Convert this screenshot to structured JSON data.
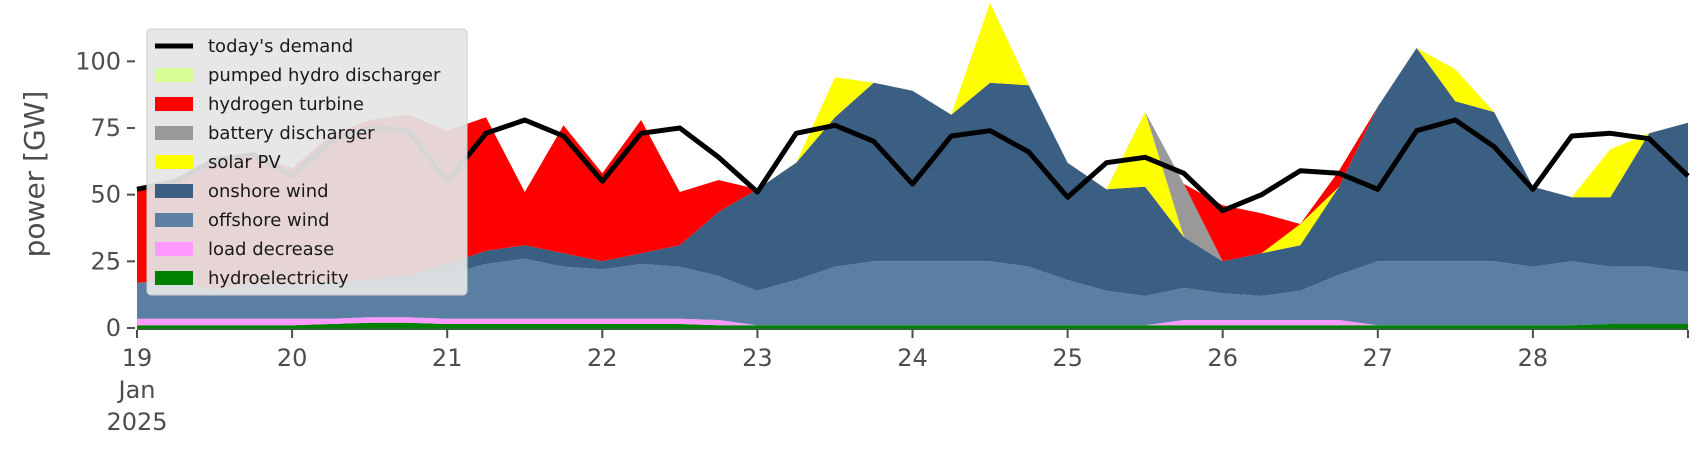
{
  "chart_data": {
    "type": "area",
    "ylabel": "power [GW]",
    "ylim": [
      0,
      120
    ],
    "yticks": [
      0,
      25,
      50,
      75,
      100
    ],
    "xlim": [
      0,
      10
    ],
    "xticks": [
      {
        "x": 0,
        "lines": [
          "19",
          "Jan",
          "2025"
        ]
      },
      {
        "x": 1,
        "lines": [
          "20"
        ]
      },
      {
        "x": 2,
        "lines": [
          "21"
        ]
      },
      {
        "x": 3,
        "lines": [
          "22"
        ]
      },
      {
        "x": 4,
        "lines": [
          "23"
        ]
      },
      {
        "x": 5,
        "lines": [
          "24"
        ]
      },
      {
        "x": 6,
        "lines": [
          "25"
        ]
      },
      {
        "x": 7,
        "lines": [
          "26"
        ]
      },
      {
        "x": 8,
        "lines": [
          "27"
        ]
      },
      {
        "x": 9,
        "lines": [
          "28"
        ]
      }
    ],
    "grid": false,
    "legend_position": "top-left",
    "x": [
      0,
      0.25,
      0.5,
      0.75,
      1,
      1.25,
      1.5,
      1.75,
      2,
      2.25,
      2.5,
      2.75,
      3,
      3.25,
      3.5,
      3.75,
      4,
      4.25,
      4.5,
      4.75,
      5,
      5.25,
      5.5,
      5.75,
      6,
      6.25,
      6.5,
      6.75,
      7,
      7.25,
      7.5,
      7.75,
      8,
      8.25,
      8.5,
      8.75,
      9,
      9.25,
      9.5,
      9.75,
      10
    ],
    "stack_series": [
      {
        "name": "hydroelectricity",
        "color": "#008000",
        "values": [
          1,
          1,
          1,
          1,
          1,
          1.5,
          2,
          2,
          1.5,
          1.5,
          1.5,
          1.5,
          1.5,
          1.5,
          1.5,
          1,
          1,
          1,
          1,
          1,
          1,
          1,
          1,
          1,
          1,
          1,
          1,
          1,
          1,
          1,
          1,
          1,
          1,
          1,
          1,
          1,
          1,
          1,
          1.5,
          1.5,
          1.5
        ]
      },
      {
        "name": "load decrease",
        "color": "#ff99ff",
        "values": [
          2.5,
          2.5,
          2.5,
          2.5,
          2.5,
          2,
          2,
          2,
          2,
          2,
          2,
          2,
          2,
          2,
          2,
          2,
          0,
          0,
          0,
          0,
          0,
          0,
          0,
          0,
          0,
          0,
          0,
          2,
          2,
          2,
          2,
          2,
          0,
          0,
          0,
          0,
          0,
          0,
          0,
          0,
          0
        ]
      },
      {
        "name": "offshore wind",
        "color": "#5b7fa3",
        "values": [
          13.5,
          14.5,
          11,
          13.5,
          12.5,
          13,
          12,
          14,
          16.5,
          20.5,
          22.5,
          19.5,
          18.5,
          20.5,
          19.5,
          16.5,
          13,
          17,
          22,
          24,
          24,
          24,
          24,
          22,
          17,
          13,
          11,
          12,
          10,
          9,
          11,
          17,
          24,
          24,
          24,
          24,
          22,
          24,
          21.5,
          21.5,
          19.5
        ]
      },
      {
        "name": "onshore wind",
        "color": "#3a5f82",
        "values": [
          0,
          0,
          0,
          0,
          0,
          1,
          2,
          2,
          4,
          5,
          5,
          5,
          3,
          4,
          8,
          24,
          38,
          44,
          56,
          67,
          64,
          55,
          67,
          68,
          44,
          38,
          41,
          19,
          12,
          16,
          17,
          33,
          58,
          80,
          60,
          56,
          30,
          24,
          26,
          50,
          56
        ]
      },
      {
        "name": "solar PV",
        "color": "#ffff00",
        "values": [
          0,
          0,
          0,
          0,
          0,
          0,
          0,
          0,
          0,
          0,
          0,
          0,
          0,
          0,
          0,
          0,
          0,
          0,
          15,
          0,
          0,
          0,
          30,
          0,
          0,
          0,
          28,
          0,
          0,
          0,
          8,
          0,
          0,
          0,
          12,
          0,
          0,
          0,
          18,
          0,
          0
        ]
      },
      {
        "name": "battery discharger",
        "color": "#999999",
        "values": [
          0,
          0,
          0,
          0,
          0,
          0,
          0,
          0,
          0,
          0,
          0,
          0,
          0,
          0,
          0,
          0,
          0,
          0,
          0,
          0,
          0,
          0,
          0,
          0,
          0,
          0,
          0,
          20,
          0,
          0,
          0,
          0,
          0,
          0,
          0,
          0,
          0,
          0,
          0,
          0,
          0
        ]
      },
      {
        "name": "hydrogen turbine",
        "color": "#ff0000",
        "values": [
          35,
          38,
          48,
          48,
          44,
          55,
          60,
          60,
          50,
          50,
          20,
          48,
          33,
          50,
          20,
          12,
          0,
          0,
          0,
          0,
          0,
          0,
          0,
          0,
          0,
          0,
          0,
          0,
          21,
          15,
          0,
          6,
          0,
          0,
          0,
          0,
          0,
          0,
          0,
          0,
          0
        ]
      },
      {
        "name": "pumped hydro discharger",
        "color": "#d7ff96",
        "values": [
          0,
          0,
          0,
          0,
          0,
          0,
          0,
          0,
          0,
          0,
          0,
          0,
          0,
          0,
          0,
          0,
          0,
          0,
          0,
          0,
          0,
          0,
          0,
          0,
          0,
          0,
          0,
          0,
          0,
          0,
          0,
          0,
          0,
          0,
          0,
          0,
          0,
          0,
          0,
          0,
          0
        ]
      }
    ],
    "demand": {
      "name": "today's demand",
      "color": "#000000",
      "values": [
        52,
        55,
        63,
        65,
        57,
        70,
        75,
        74,
        55,
        73,
        78,
        72,
        55,
        73,
        75,
        64,
        51,
        73,
        76,
        70,
        54,
        72,
        74,
        66,
        49,
        62,
        64,
        58,
        44,
        50,
        59,
        58,
        52,
        74,
        78,
        68,
        52,
        72,
        73,
        71,
        57
      ]
    },
    "legend": [
      {
        "label": "today's demand",
        "color": "#000000",
        "kind": "line"
      },
      {
        "label": "pumped hydro discharger",
        "color": "#d7ff96",
        "kind": "patch"
      },
      {
        "label": "hydrogen turbine",
        "color": "#ff0000",
        "kind": "patch"
      },
      {
        "label": "battery discharger",
        "color": "#999999",
        "kind": "patch"
      },
      {
        "label": "solar PV",
        "color": "#ffff00",
        "kind": "patch"
      },
      {
        "label": "onshore wind",
        "color": "#3a5f82",
        "kind": "patch"
      },
      {
        "label": "offshore wind",
        "color": "#5b7fa3",
        "kind": "patch"
      },
      {
        "label": "load decrease",
        "color": "#ff99ff",
        "kind": "patch"
      },
      {
        "label": "hydroelectricity",
        "color": "#008000",
        "kind": "patch"
      }
    ]
  }
}
